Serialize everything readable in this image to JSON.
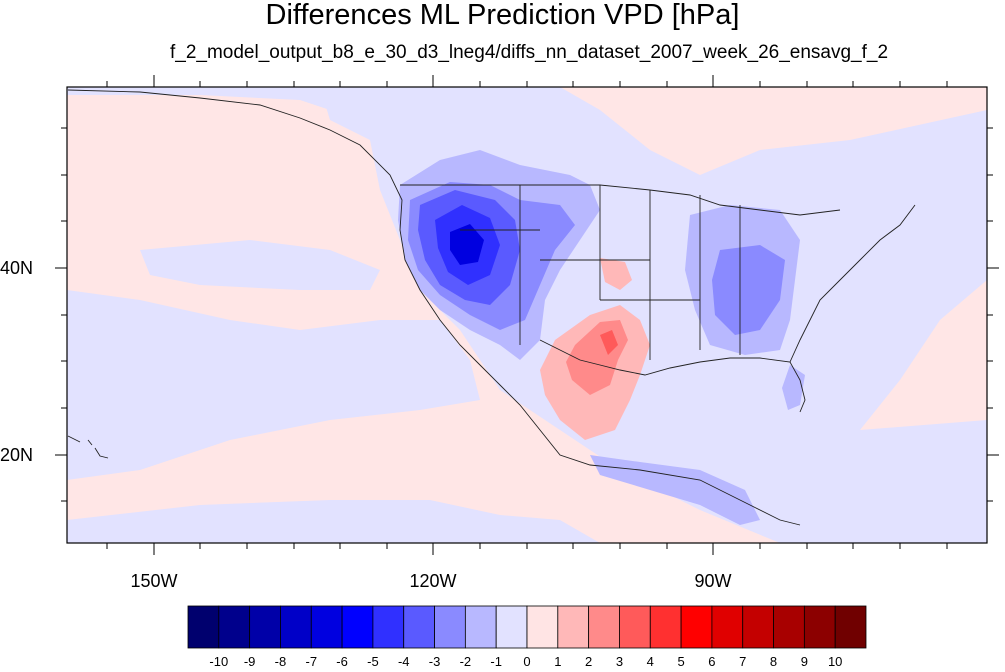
{
  "title": "Differences ML Prediction VPD [hPa]",
  "subtitle": "f_2_model_output_b8_e_30_d3_lneg4/diffs_nn_dataset_2007_week_26_ensavg_f_2",
  "lat_labels": [
    "40N",
    "20N"
  ],
  "lon_labels": [
    "150W",
    "120W",
    "90W"
  ],
  "colorbar": {
    "labels": [
      "-10",
      "-9",
      "-8",
      "-7",
      "-6",
      "-5",
      "-4",
      "-3",
      "-2",
      "-1",
      "0",
      "1",
      "2",
      "3",
      "4",
      "5",
      "6",
      "7",
      "8",
      "9",
      "10"
    ],
    "colors": [
      "#00006e",
      "#00008c",
      "#0000a8",
      "#0000c8",
      "#0000e0",
      "#0000ff",
      "#3030ff",
      "#5a5aff",
      "#8a8aff",
      "#b8b8ff",
      "#e2e2ff",
      "#ffe4e4",
      "#ffb8b8",
      "#ff8a8a",
      "#ff5a5a",
      "#ff3030",
      "#ff0000",
      "#e00000",
      "#c40000",
      "#a80000",
      "#8c0000",
      "#700000"
    ]
  },
  "map": {
    "extent_lon": [
      -160,
      -62
    ],
    "extent_lat": [
      11,
      58
    ],
    "background_color": "#ffe6e6",
    "land_bias": "negative VPD differences over western US, positive over Texas/northern Mexico"
  }
}
